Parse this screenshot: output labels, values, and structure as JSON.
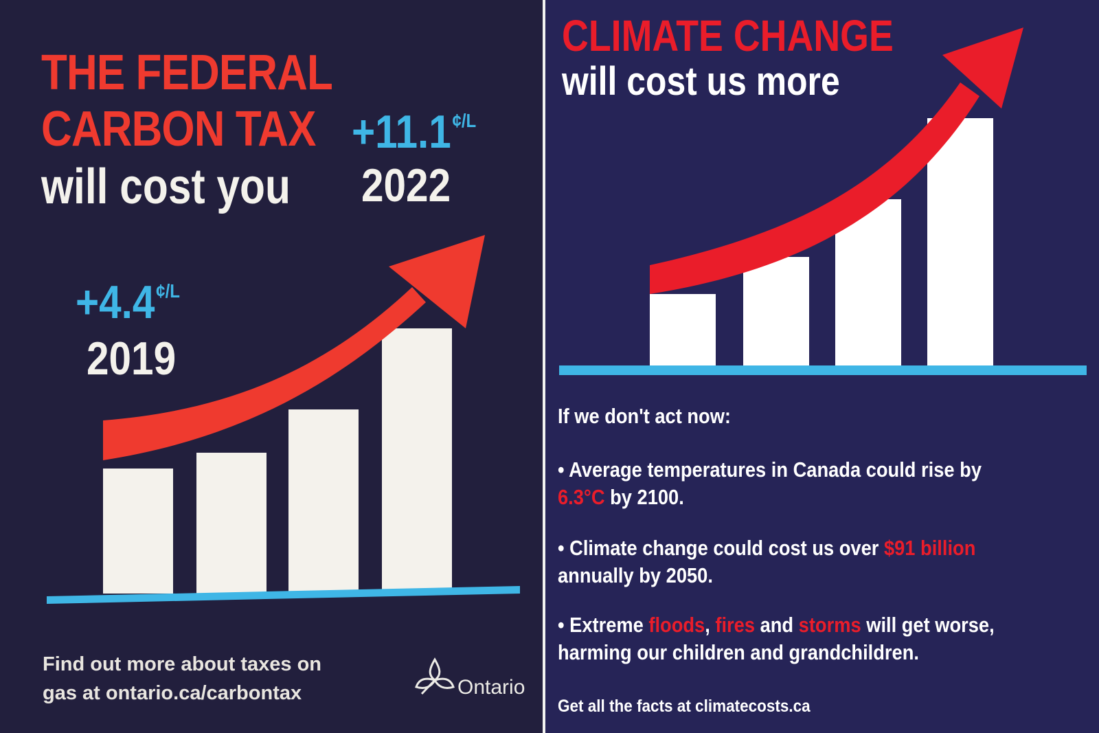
{
  "left_poster": {
    "headline": {
      "line1": "THE FEDERAL",
      "line2": "CARBON TAX",
      "line3": "will cost you"
    },
    "cost_2019": {
      "amount": "+4.4",
      "unit": "¢/L",
      "year": "2019"
    },
    "cost_2022": {
      "amount": "+11.1",
      "unit": "¢/L",
      "year": "2022"
    },
    "footer": {
      "line1": "Find out more about taxes on",
      "line2": "gas at ontario.ca/carbontax"
    },
    "logo_text": "Ontario",
    "colors": {
      "background": "#221f3d",
      "red": "#ef3a2f",
      "blue": "#3fb6e6",
      "white": "#f4f2ec"
    }
  },
  "right_poster": {
    "headline": {
      "line1": "CLIMATE CHANGE",
      "line2": "will cost us more"
    },
    "intro": "If we don't act now:",
    "bullet1": {
      "line1": "• Average temperatures in Canada could rise by",
      "highlight": "6.3°C",
      "rest": " by 2100."
    },
    "bullet2": {
      "line1_pre": "• Climate change could cost us over ",
      "highlight": "$91 billion",
      "line2": "annually by 2050."
    },
    "bullet3": {
      "pre": "• Extreme ",
      "hl1": "floods",
      "sep1": ", ",
      "hl2": "fires",
      "sep2": " and ",
      "hl3": "storms",
      "post": " will get worse,",
      "line2": "harming our children and grandchildren."
    },
    "footer": "Get all the facts at climatecosts.ca",
    "colors": {
      "background": "#262457",
      "red": "#ea1d2a",
      "blue": "#3fb6e6",
      "white": "#ffffff"
    }
  }
}
